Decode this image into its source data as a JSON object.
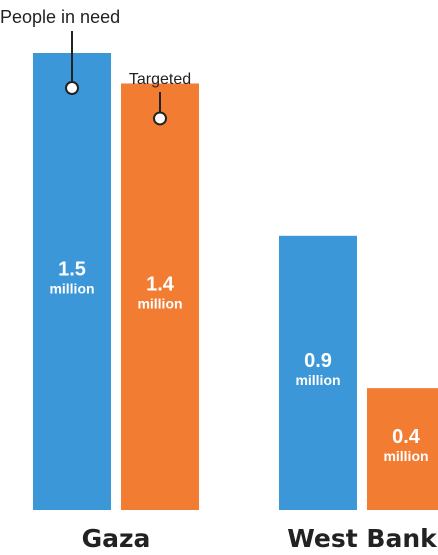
{
  "chart_data": {
    "type": "bar",
    "categories": [
      "Gaza",
      "West Bank"
    ],
    "series": [
      {
        "name": "People in need",
        "values": [
          1.5,
          0.9
        ],
        "labels": [
          "1.5",
          "0.9"
        ]
      },
      {
        "name": "Targeted",
        "values": [
          1.4,
          0.4
        ],
        "labels": [
          "1.4",
          "0.4"
        ]
      }
    ],
    "unit_label": "million",
    "ylim": [
      0,
      1.5
    ],
    "grid": false,
    "legend": "callout-annotations"
  },
  "colors": {
    "people_in_need": "#3b97d8",
    "targeted": "#f37c33",
    "label_text": "#ffffff",
    "category_text": "#222222"
  }
}
